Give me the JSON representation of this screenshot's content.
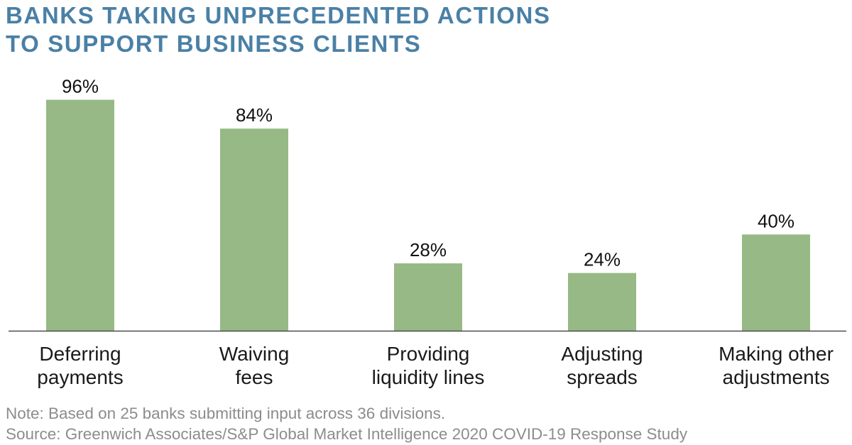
{
  "title_lines": [
    "BANKS TAKING UNPRECEDENTED ACTIONS",
    "TO SUPPORT BUSINESS CLIENTS"
  ],
  "notes": {
    "note": "Note: Based on 25 banks submitting input across 36 divisions.",
    "source": "Source: Greenwich Associates/S&P Global Market Intelligence 2020 COVID-19 Response Study"
  },
  "colors": {
    "bar": "#96b985",
    "title": "#4a80a6",
    "axis": "#4d4d4d"
  },
  "chart_data": {
    "type": "bar",
    "categories": [
      [
        "Deferring",
        "payments"
      ],
      [
        "Waiving",
        "fees"
      ],
      [
        "Providing",
        "liquidity lines"
      ],
      [
        "Adjusting",
        "spreads"
      ],
      [
        "Making other",
        "adjustments"
      ]
    ],
    "values": [
      96,
      84,
      28,
      24,
      40
    ],
    "value_labels": [
      "96%",
      "84%",
      "28%",
      "24%",
      "40%"
    ],
    "title": "BANKS TAKING UNPRECEDENTED ACTIONS TO SUPPORT BUSINESS CLIENTS",
    "xlabel": "",
    "ylabel": "",
    "ylim": [
      0,
      100
    ],
    "grid": false,
    "legend": "none"
  }
}
